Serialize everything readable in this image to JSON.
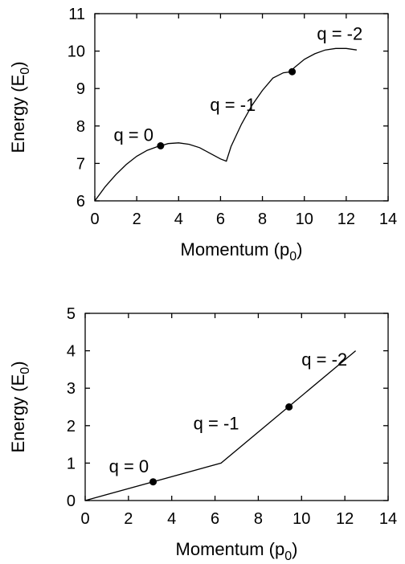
{
  "chart_data": [
    {
      "type": "line",
      "title": "",
      "xlabel": "Momentum (p",
      "xlabel_sub": "0",
      "ylabel": "Energy (E",
      "ylabel_sub": "0",
      "xlim": [
        0,
        14
      ],
      "ylim": [
        6,
        11
      ],
      "xticks": [
        "0",
        "2",
        "4",
        "6",
        "8",
        "10",
        "12",
        "14"
      ],
      "yticks": [
        "6",
        "7",
        "8",
        "9",
        "10",
        "11"
      ],
      "grid": false,
      "series": [
        {
          "x": [
            0,
            0.5,
            1,
            1.5,
            2,
            2.5,
            3,
            3.14,
            3.5,
            4,
            4.5,
            5,
            5.5,
            6,
            6.28,
            6.5,
            7,
            7.5,
            8,
            8.5,
            9,
            9.42,
            9.5,
            10,
            10.5,
            11,
            11.5,
            12,
            12.5
          ],
          "y": [
            6.0,
            6.38,
            6.7,
            6.97,
            7.19,
            7.35,
            7.45,
            7.47,
            7.53,
            7.55,
            7.51,
            7.42,
            7.27,
            7.12,
            7.06,
            7.45,
            8.05,
            8.55,
            8.95,
            9.28,
            9.42,
            9.45,
            9.55,
            9.78,
            9.93,
            10.03,
            10.07,
            10.07,
            10.03
          ]
        }
      ],
      "points": [
        {
          "x": 3.14,
          "y": 7.47
        },
        {
          "x": 9.42,
          "y": 9.45
        }
      ],
      "annotations": [
        {
          "text": "q = 0",
          "x": 0.9,
          "y": 7.6
        },
        {
          "text": "q = -1",
          "x": 5.5,
          "y": 8.4
        },
        {
          "text": "q = -2",
          "x": 10.6,
          "y": 10.3
        }
      ]
    },
    {
      "type": "line",
      "title": "",
      "xlabel": "Momentum (p",
      "xlabel_sub": "0",
      "ylabel": "Energy (E",
      "ylabel_sub": "0",
      "xlim": [
        0,
        14
      ],
      "ylim": [
        0,
        5
      ],
      "xticks": [
        "0",
        "2",
        "4",
        "6",
        "8",
        "10",
        "12",
        "14"
      ],
      "yticks": [
        "0",
        "1",
        "2",
        "3",
        "4",
        "5"
      ],
      "grid": false,
      "series": [
        {
          "x": [
            0,
            6.28,
            12.5
          ],
          "y": [
            0,
            1.0,
            4.0
          ]
        }
      ],
      "points": [
        {
          "x": 3.14,
          "y": 0.5
        },
        {
          "x": 9.42,
          "y": 2.5
        }
      ],
      "annotations": [
        {
          "text": "q = 0",
          "x": 1.1,
          "y": 0.75
        },
        {
          "text": "q = -1",
          "x": 5.0,
          "y": 1.9
        },
        {
          "text": "q = -2",
          "x": 10.0,
          "y": 3.6
        }
      ]
    }
  ]
}
